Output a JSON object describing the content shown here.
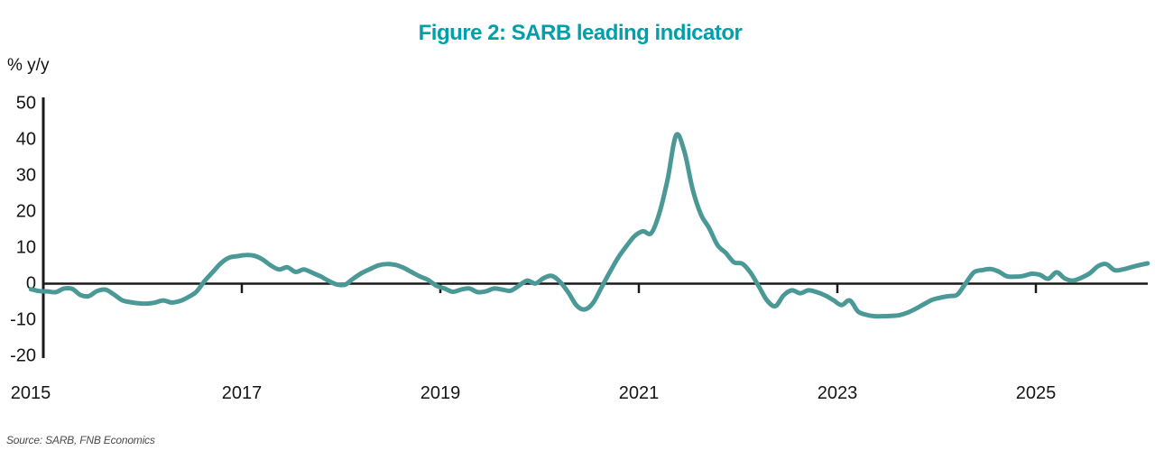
{
  "title": "Figure 2: SARB leading indicator",
  "source_note": "Source: SARB, FNB Economics",
  "colors": {
    "title": "#00a0aa",
    "series_line": "#4a9996",
    "axis": "#1a1a1a",
    "background": "#ffffff"
  },
  "chart_data": {
    "type": "line",
    "title": "Figure 2: SARB leading indicator",
    "xlabel": "",
    "ylabel": "% y/y",
    "ylim": [
      -20,
      50
    ],
    "ytick_step": 10,
    "yticks": [
      "50",
      "40",
      "30",
      "20",
      "10",
      "0",
      "-10",
      "-20"
    ],
    "xticks": [
      "2015",
      "2017",
      "2019",
      "2021",
      "2023",
      "2025"
    ],
    "xtick_years": [
      2015,
      2017,
      2019,
      2021,
      2023,
      2025
    ],
    "frequency": "monthly",
    "x_start": "2014-11",
    "x_end": "2026-02",
    "grid": false,
    "legend_position": "none",
    "series": [
      {
        "name": "SARB leading indicator (% y/y)",
        "color": "#4a9996",
        "values": [
          -1.8,
          -2.3,
          -2.4,
          -2.6,
          -1.6,
          -1.7,
          -3.4,
          -3.7,
          -2.3,
          -1.9,
          -3.2,
          -4.8,
          -5.4,
          -5.7,
          -5.8,
          -5.5,
          -4.9,
          -5.5,
          -5.1,
          -4.0,
          -2.5,
          0.5,
          3.0,
          5.5,
          7.0,
          7.4,
          7.7,
          7.5,
          6.5,
          4.8,
          3.7,
          4.3,
          3.0,
          3.7,
          2.8,
          1.8,
          0.5,
          -0.5,
          -0.5,
          1.2,
          2.7,
          3.8,
          4.8,
          5.2,
          5.0,
          4.2,
          3.0,
          1.8,
          0.8,
          -0.8,
          -1.6,
          -2.5,
          -1.9,
          -1.6,
          -2.6,
          -2.4,
          -1.6,
          -1.9,
          -2.2,
          -0.8,
          0.6,
          -0.2,
          1.3,
          1.9,
          0.2,
          -2.8,
          -6.4,
          -7.4,
          -5.5,
          -1.2,
          3.0,
          7.0,
          10.2,
          13.0,
          14.3,
          13.8,
          19.5,
          29.0,
          41.0,
          36.5,
          26.0,
          19.0,
          15.2,
          10.5,
          8.3,
          5.7,
          5.3,
          2.8,
          -1.0,
          -4.9,
          -6.5,
          -3.5,
          -2.1,
          -2.9,
          -2.1,
          -2.6,
          -3.5,
          -4.8,
          -6.2,
          -4.9,
          -8.0,
          -8.9,
          -9.3,
          -9.3,
          -9.2,
          -9.0,
          -8.3,
          -7.2,
          -5.9,
          -4.7,
          -4.1,
          -3.7,
          -3.3,
          -0.2,
          2.9,
          3.5,
          3.8,
          3.1,
          1.8,
          1.7,
          1.9,
          2.5,
          2.2,
          1.1,
          2.9,
          1.2,
          0.6,
          1.4,
          2.6,
          4.6,
          5.2,
          3.5,
          3.7,
          4.3,
          4.9,
          5.4
        ]
      }
    ]
  }
}
